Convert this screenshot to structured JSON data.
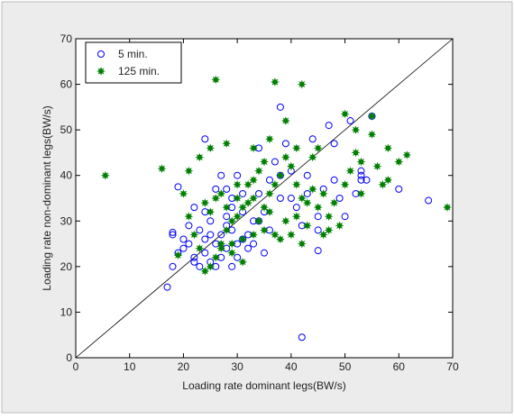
{
  "chart_data": {
    "type": "scatter",
    "xlabel": "Loading rate dominant legs(BW/s)",
    "ylabel": "Loading rate non-dominant legs(BW/s)",
    "xlim": [
      0,
      70
    ],
    "ylim": [
      0,
      70
    ],
    "xticks": [
      0,
      10,
      20,
      30,
      40,
      50,
      60,
      70
    ],
    "yticks": [
      0,
      10,
      20,
      30,
      40,
      50,
      60,
      70
    ],
    "legend_position": "upper left",
    "series": [
      {
        "name": "5 min.",
        "color": "#0000ff",
        "marker": "circle",
        "x": [
          17,
          42,
          60,
          65.5,
          55,
          38,
          24,
          47,
          53,
          45,
          18,
          18,
          20,
          19,
          21,
          22,
          23,
          24,
          25,
          26,
          27,
          28,
          29,
          30,
          31,
          32,
          33,
          35,
          36,
          38,
          40,
          41,
          43,
          44,
          46,
          48,
          49,
          50,
          52,
          53,
          54,
          45,
          42,
          39,
          37,
          34,
          34,
          30,
          29,
          28,
          27,
          26,
          25,
          24,
          23,
          22,
          20,
          19,
          18,
          21,
          25,
          27,
          29,
          31,
          33,
          35,
          28,
          31,
          26,
          22,
          24,
          30,
          32,
          36,
          40,
          45,
          43,
          38,
          34,
          28,
          29,
          48,
          51,
          53
        ],
        "values": [
          15.5,
          4.5,
          37,
          34.5,
          53,
          55,
          48,
          51,
          41,
          23.5,
          27.5,
          27,
          26,
          37.5,
          25,
          22,
          28,
          26,
          30,
          37,
          40,
          31,
          33,
          40,
          36,
          27,
          30,
          32,
          39,
          35,
          41,
          33,
          40,
          48,
          37,
          39,
          35,
          31,
          36,
          39,
          39,
          28,
          29,
          47,
          43,
          46,
          30,
          22,
          20,
          24,
          22,
          20,
          21,
          23,
          20,
          21,
          24,
          23,
          20,
          29,
          27,
          27,
          28,
          26,
          25,
          23,
          29,
          32,
          25,
          33,
          32,
          25,
          24,
          28,
          35,
          31,
          36,
          40,
          36,
          37,
          35,
          47,
          52,
          40
        ]
      },
      {
        "name": "125 min.",
        "color": "#008000",
        "marker": "star",
        "x": [
          5.5,
          16,
          26,
          37,
          42,
          39,
          50,
          55,
          69,
          61.5,
          58,
          52,
          19,
          20,
          21,
          23,
          25,
          28,
          33,
          36,
          24,
          25,
          26,
          27,
          28,
          29,
          30,
          31,
          32,
          33,
          34,
          35,
          36,
          37,
          38,
          40,
          41,
          42,
          43,
          44,
          45,
          46,
          47,
          48,
          50,
          51,
          52,
          53,
          56,
          57,
          44,
          45,
          47,
          42,
          40,
          38,
          35,
          33,
          31,
          29,
          27,
          23,
          22,
          21,
          24,
          26,
          28,
          30,
          32,
          34,
          36,
          39,
          41,
          43,
          46,
          49,
          53,
          55,
          58,
          60,
          31,
          29,
          37,
          39,
          41,
          35,
          33,
          30,
          27,
          25
        ],
        "values": [
          40,
          41.5,
          61,
          60.5,
          60,
          52,
          53.5,
          53,
          33,
          44.5,
          46,
          50,
          22.5,
          36,
          41,
          44,
          46,
          47,
          46,
          48,
          19,
          20,
          22,
          25,
          28,
          30,
          31,
          33,
          34,
          35,
          30,
          33,
          36,
          38,
          40,
          42,
          38,
          35,
          34,
          37,
          33,
          36,
          31,
          34,
          38,
          41,
          45,
          36,
          42,
          38,
          44,
          46,
          28,
          25,
          27,
          26,
          28,
          27,
          26,
          25,
          24,
          24,
          27,
          31,
          34,
          35,
          33,
          35,
          38,
          41,
          32,
          30,
          31,
          29,
          27,
          29,
          43,
          49,
          39,
          43,
          21,
          23,
          27,
          44,
          46,
          43,
          39,
          38,
          36,
          32
        ]
      }
    ]
  }
}
